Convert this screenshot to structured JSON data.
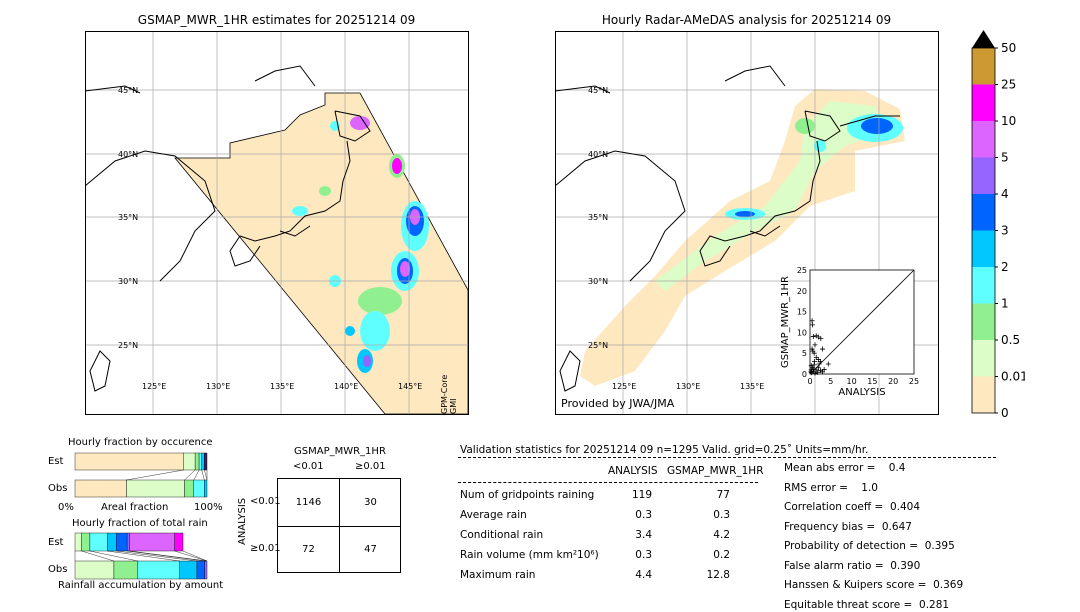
{
  "left_map": {
    "title": "GSMAP_MWR_1HR estimates for 20251214 09",
    "side_label": "GPM-Core GMI",
    "lat_labels": [
      "45°N",
      "40°N",
      "35°N",
      "30°N",
      "25°N"
    ],
    "lon_labels": [
      "125°E",
      "130°E",
      "135°E",
      "140°E",
      "145°E"
    ]
  },
  "right_map": {
    "title": "Hourly Radar-AMeDAS analysis for 20251214 09",
    "credit": "Provided by JWA/JMA",
    "lat_labels": [
      "45°N",
      "40°N",
      "35°N",
      "30°N",
      "25°N"
    ],
    "lon_labels": [
      "125°E",
      "130°E",
      "135°E"
    ]
  },
  "colorbar": {
    "levels": [
      "0",
      "0.01",
      "0.5",
      "1",
      "2",
      "3",
      "4",
      "5",
      "10",
      "25",
      "50"
    ],
    "colors": [
      "#fee8c0",
      "#dcfcc8",
      "#90f090",
      "#60ffff",
      "#00c8ff",
      "#0064ff",
      "#9664ff",
      "#dc64ff",
      "#ff00ff",
      "#cc9933"
    ],
    "extend_color": "#000000"
  },
  "chart_data": [
    {
      "type": "scatter",
      "xlabel": "ANALYSIS",
      "ylabel": "GSMAP_MWR_1HR",
      "xlim": [
        0,
        25
      ],
      "ylim": [
        0,
        25
      ],
      "ticks": [
        "0",
        "5",
        "10",
        "15",
        "20",
        "25"
      ],
      "points": [
        [
          0.5,
          12.8
        ],
        [
          0.6,
          11.8
        ],
        [
          0.8,
          9
        ],
        [
          1.5,
          9.2
        ],
        [
          2,
          8.9
        ],
        [
          2.6,
          8.5
        ],
        [
          1.2,
          7
        ],
        [
          0.5,
          6
        ],
        [
          0.7,
          5.5
        ],
        [
          1,
          5
        ],
        [
          3,
          6
        ],
        [
          4.4,
          2.4
        ],
        [
          1.5,
          4
        ],
        [
          2,
          3.5
        ],
        [
          2.5,
          3
        ],
        [
          0.3,
          2
        ],
        [
          0.6,
          1.5
        ],
        [
          1,
          2.2
        ],
        [
          1.5,
          1
        ],
        [
          2,
          1.5
        ],
        [
          2.5,
          0.8
        ],
        [
          3,
          0.5
        ],
        [
          0.2,
          0.5
        ],
        [
          0.4,
          0.3
        ],
        [
          0.8,
          0.6
        ],
        [
          1.2,
          0.2
        ],
        [
          1.8,
          0.4
        ],
        [
          3.4,
          1.1
        ],
        [
          0.3,
          1
        ],
        [
          0.9,
          1.2
        ],
        [
          1.1,
          3
        ],
        [
          2.2,
          2.4
        ]
      ]
    },
    {
      "type": "bar",
      "title": "Hourly fraction by occurence",
      "xlabel": "Areal fraction",
      "tick_left": "0%",
      "tick_right": "100%",
      "categories": [
        "Est",
        "Obs"
      ],
      "series": {
        "Est": [
          0.82,
          0.09,
          0.03,
          0.02,
          0.02,
          0.02
        ],
        "Obs": [
          0.39,
          0.44,
          0.07,
          0.08,
          0.02,
          0
        ]
      }
    },
    {
      "type": "bar",
      "title": "Hourly fraction of total rain",
      "xlabel": "Rainfall accumulation by amount",
      "categories": [
        "Est",
        "Obs"
      ],
      "series": {
        "Est": [
          0,
          0.05,
          0.063,
          0.131,
          0.068,
          0.083,
          0.02,
          0.34,
          0.063
        ],
        "Obs": [
          0,
          0.295,
          0.181,
          0.317,
          0.131,
          0.058,
          0.018,
          0,
          0
        ]
      }
    }
  ],
  "contingency": {
    "title": "GSMAP_MWR_1HR",
    "col_labels": [
      "<0.01",
      "≥0.01"
    ],
    "row_title": "ANALYSIS",
    "row_labels": [
      "<0.01",
      "≥0.01"
    ],
    "cells": [
      [
        "1146",
        "30"
      ],
      [
        "72",
        "47"
      ]
    ]
  },
  "stats": {
    "header": "Validation statistics for 20251214 09  n=1295 Valid. grid=0.25˚ Units=mm/hr.",
    "col1": "ANALYSIS",
    "col2": "GSMAP_MWR_1HR",
    "rows": [
      {
        "label": "Num of gridpoints raining",
        "a": "119",
        "g": "77"
      },
      {
        "label": "Average rain",
        "a": "0.3",
        "g": "0.3"
      },
      {
        "label": "Conditional rain",
        "a": "3.4",
        "g": "4.2"
      },
      {
        "label": "Rain volume (mm km²10⁶)",
        "a": "0.3",
        "g": "0.2"
      },
      {
        "label": "Maximum rain",
        "a": "4.4",
        "g": "12.8"
      }
    ],
    "scores": [
      "Mean abs error =    0.4",
      "RMS error =    1.0",
      "Correlation coeff =  0.404",
      "Frequency bias =  0.647",
      "Probability of detection =  0.395",
      "False alarm ratio =  0.390",
      "Hanssen & Kuipers score =  0.369",
      "Equitable threat score =  0.281"
    ]
  }
}
